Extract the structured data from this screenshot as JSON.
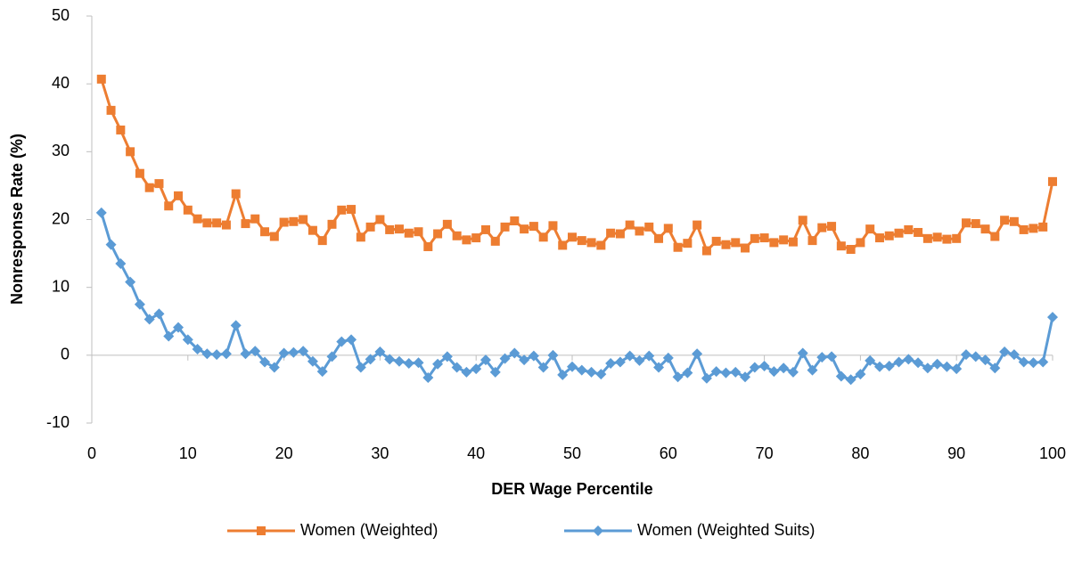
{
  "chart_data": {
    "type": "line",
    "x_label": "DER Wage Percentile",
    "y_label": "Nonresponse Rate (%)",
    "x": [
      1,
      2,
      3,
      4,
      5,
      6,
      7,
      8,
      9,
      10,
      11,
      12,
      13,
      14,
      15,
      16,
      17,
      18,
      19,
      20,
      21,
      22,
      23,
      24,
      25,
      26,
      27,
      28,
      29,
      30,
      31,
      32,
      33,
      34,
      35,
      36,
      37,
      38,
      39,
      40,
      41,
      42,
      43,
      44,
      45,
      46,
      47,
      48,
      49,
      50,
      51,
      52,
      53,
      54,
      55,
      56,
      57,
      58,
      59,
      60,
      61,
      62,
      63,
      64,
      65,
      66,
      67,
      68,
      69,
      70,
      71,
      72,
      73,
      74,
      75,
      76,
      77,
      78,
      79,
      80,
      81,
      82,
      83,
      84,
      85,
      86,
      87,
      88,
      89,
      90,
      91,
      92,
      93,
      94,
      95,
      96,
      97,
      98,
      99,
      100
    ],
    "series": [
      {
        "name": "Women (Weighted)",
        "color": "#ed7d31",
        "marker": "square",
        "values": [
          40.7,
          36.1,
          33.2,
          30,
          26.8,
          24.7,
          25.3,
          22,
          23.5,
          21.4,
          20.1,
          19.5,
          19.5,
          19.2,
          23.8,
          19.4,
          20.1,
          18.2,
          17.5,
          19.6,
          19.7,
          20,
          18.4,
          16.9,
          19.3,
          21.4,
          21.5,
          17.4,
          18.9,
          20,
          18.5,
          18.6,
          18,
          18.2,
          16,
          17.9,
          19.3,
          17.6,
          17,
          17.3,
          18.5,
          16.8,
          18.9,
          19.8,
          18.6,
          19,
          17.4,
          19.1,
          16.2,
          17.4,
          16.9,
          16.6,
          16.2,
          18,
          17.9,
          19.2,
          18.3,
          18.9,
          17.2,
          18.7,
          15.9,
          16.5,
          19.2,
          15.4,
          16.8,
          16.3,
          16.6,
          15.8,
          17.2,
          17.3,
          16.6,
          17,
          16.7,
          19.9,
          16.9,
          18.8,
          19,
          16.1,
          15.6,
          16.6,
          18.6,
          17.3,
          17.6,
          18,
          18.5,
          18.1,
          17.2,
          17.4,
          17.1,
          17.2,
          19.5,
          19.4,
          18.6,
          17.5,
          19.9,
          19.7,
          18.5,
          18.7,
          18.9,
          25.6
        ]
      },
      {
        "name": "Women (Weighted Suits)",
        "color": "#5b9bd5",
        "marker": "diamond",
        "values": [
          21,
          16.3,
          13.5,
          10.8,
          7.5,
          5.3,
          6.1,
          2.8,
          4.1,
          2.3,
          0.9,
          0.2,
          0.1,
          0.2,
          4.4,
          0.2,
          0.6,
          -1,
          -1.8,
          0.3,
          0.4,
          0.6,
          -0.9,
          -2.4,
          -0.2,
          2,
          2.3,
          -1.8,
          -0.6,
          0.5,
          -0.6,
          -0.9,
          -1.2,
          -1.1,
          -3.3,
          -1.3,
          -0.2,
          -1.8,
          -2.5,
          -2,
          -0.7,
          -2.5,
          -0.5,
          0.3,
          -0.7,
          -0.1,
          -1.8,
          0,
          -2.9,
          -1.7,
          -2.2,
          -2.5,
          -2.8,
          -1.2,
          -1,
          -0.1,
          -0.8,
          -0.1,
          -1.8,
          -0.4,
          -3.2,
          -2.6,
          0.2,
          -3.4,
          -2.4,
          -2.6,
          -2.5,
          -3.2,
          -1.8,
          -1.6,
          -2.4,
          -1.9,
          -2.5,
          0.3,
          -2.2,
          -0.3,
          -0.2,
          -3.1,
          -3.6,
          -2.8,
          -0.8,
          -1.7,
          -1.6,
          -1,
          -0.6,
          -1.1,
          -1.9,
          -1.3,
          -1.7,
          -2,
          0.1,
          -0.2,
          -0.7,
          -1.9,
          0.5,
          0.1,
          -1,
          -1.1,
          -1,
          5.6
        ]
      }
    ],
    "xlim": [
      0,
      100
    ],
    "xticks": [
      0,
      10,
      20,
      30,
      40,
      50,
      60,
      70,
      80,
      90,
      100
    ],
    "ylim": [
      -10,
      50
    ],
    "yticks": [
      -10,
      0,
      10,
      20,
      30,
      40,
      50
    ],
    "grid": false,
    "legend": "bottom"
  }
}
